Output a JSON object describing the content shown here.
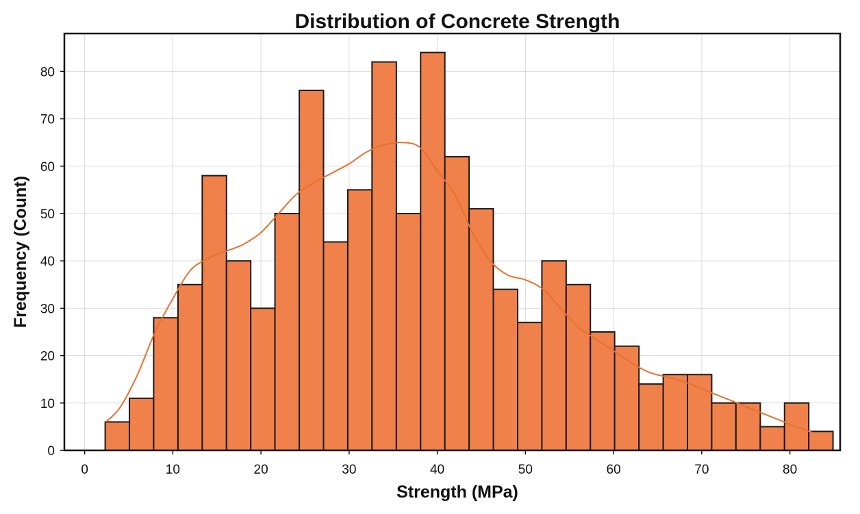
{
  "chart_data": {
    "type": "bar",
    "subtype": "histogram",
    "title": "Distribution of Concrete Strength",
    "xlabel": "Strength (MPa)",
    "ylabel": "Frequency (Count)",
    "xlim": [
      -2.3,
      85.7
    ],
    "ylim": [
      0,
      88
    ],
    "xticks": [
      0,
      10,
      20,
      30,
      40,
      50,
      60,
      70,
      80
    ],
    "yticks": [
      0,
      10,
      20,
      30,
      40,
      50,
      60,
      70,
      80
    ],
    "grid": true,
    "bar_color": "#f0814a",
    "edge_color": "#1a1a1a",
    "kde_color": "#e8702e",
    "bins": [
      {
        "x0": 2.33,
        "x1": 5.08,
        "count": 6
      },
      {
        "x0": 5.08,
        "x1": 7.83,
        "count": 11
      },
      {
        "x0": 7.83,
        "x1": 10.59,
        "count": 28
      },
      {
        "x0": 10.59,
        "x1": 13.34,
        "count": 35
      },
      {
        "x0": 13.34,
        "x1": 16.09,
        "count": 58
      },
      {
        "x0": 16.09,
        "x1": 18.84,
        "count": 40
      },
      {
        "x0": 18.84,
        "x1": 21.59,
        "count": 30
      },
      {
        "x0": 21.59,
        "x1": 24.35,
        "count": 50
      },
      {
        "x0": 24.35,
        "x1": 27.1,
        "count": 76
      },
      {
        "x0": 27.1,
        "x1": 29.85,
        "count": 44
      },
      {
        "x0": 29.85,
        "x1": 32.6,
        "count": 55
      },
      {
        "x0": 32.6,
        "x1": 35.36,
        "count": 82
      },
      {
        "x0": 35.36,
        "x1": 38.11,
        "count": 50
      },
      {
        "x0": 38.11,
        "x1": 40.86,
        "count": 84
      },
      {
        "x0": 40.86,
        "x1": 43.61,
        "count": 62
      },
      {
        "x0": 43.61,
        "x1": 46.36,
        "count": 51
      },
      {
        "x0": 46.36,
        "x1": 49.12,
        "count": 34
      },
      {
        "x0": 49.12,
        "x1": 51.87,
        "count": 27
      },
      {
        "x0": 51.87,
        "x1": 54.62,
        "count": 40
      },
      {
        "x0": 54.62,
        "x1": 57.37,
        "count": 35
      },
      {
        "x0": 57.37,
        "x1": 60.12,
        "count": 25
      },
      {
        "x0": 60.12,
        "x1": 62.88,
        "count": 22
      },
      {
        "x0": 62.88,
        "x1": 65.63,
        "count": 14
      },
      {
        "x0": 65.63,
        "x1": 68.38,
        "count": 16
      },
      {
        "x0": 68.38,
        "x1": 71.13,
        "count": 16
      },
      {
        "x0": 71.13,
        "x1": 73.88,
        "count": 10
      },
      {
        "x0": 73.88,
        "x1": 76.64,
        "count": 10
      },
      {
        "x0": 76.64,
        "x1": 79.39,
        "count": 5
      },
      {
        "x0": 79.39,
        "x1": 82.14,
        "count": 10
      },
      {
        "x0": 82.14,
        "x1": 84.89,
        "count": 4
      }
    ],
    "kde": {
      "x": [
        2.4,
        4,
        6,
        8,
        10,
        12,
        14,
        16,
        18,
        20,
        22,
        24,
        26,
        28,
        30,
        32,
        34,
        36,
        38,
        40,
        42,
        44,
        46,
        48,
        50,
        52,
        54,
        56,
        58,
        60,
        62,
        64,
        66,
        68,
        70,
        72,
        74,
        76,
        78,
        80,
        82.5
      ],
      "y": [
        6,
        9,
        16,
        25,
        32,
        38,
        40.5,
        42,
        43.5,
        46,
        50,
        54,
        56.5,
        58.5,
        60.5,
        63,
        64.5,
        65,
        64,
        59,
        54,
        46,
        40,
        37,
        36,
        34,
        30,
        26,
        23.5,
        21,
        18.5,
        16.5,
        15.5,
        14.5,
        13,
        11.5,
        10,
        8.5,
        7,
        5.5,
        3.8
      ]
    }
  }
}
